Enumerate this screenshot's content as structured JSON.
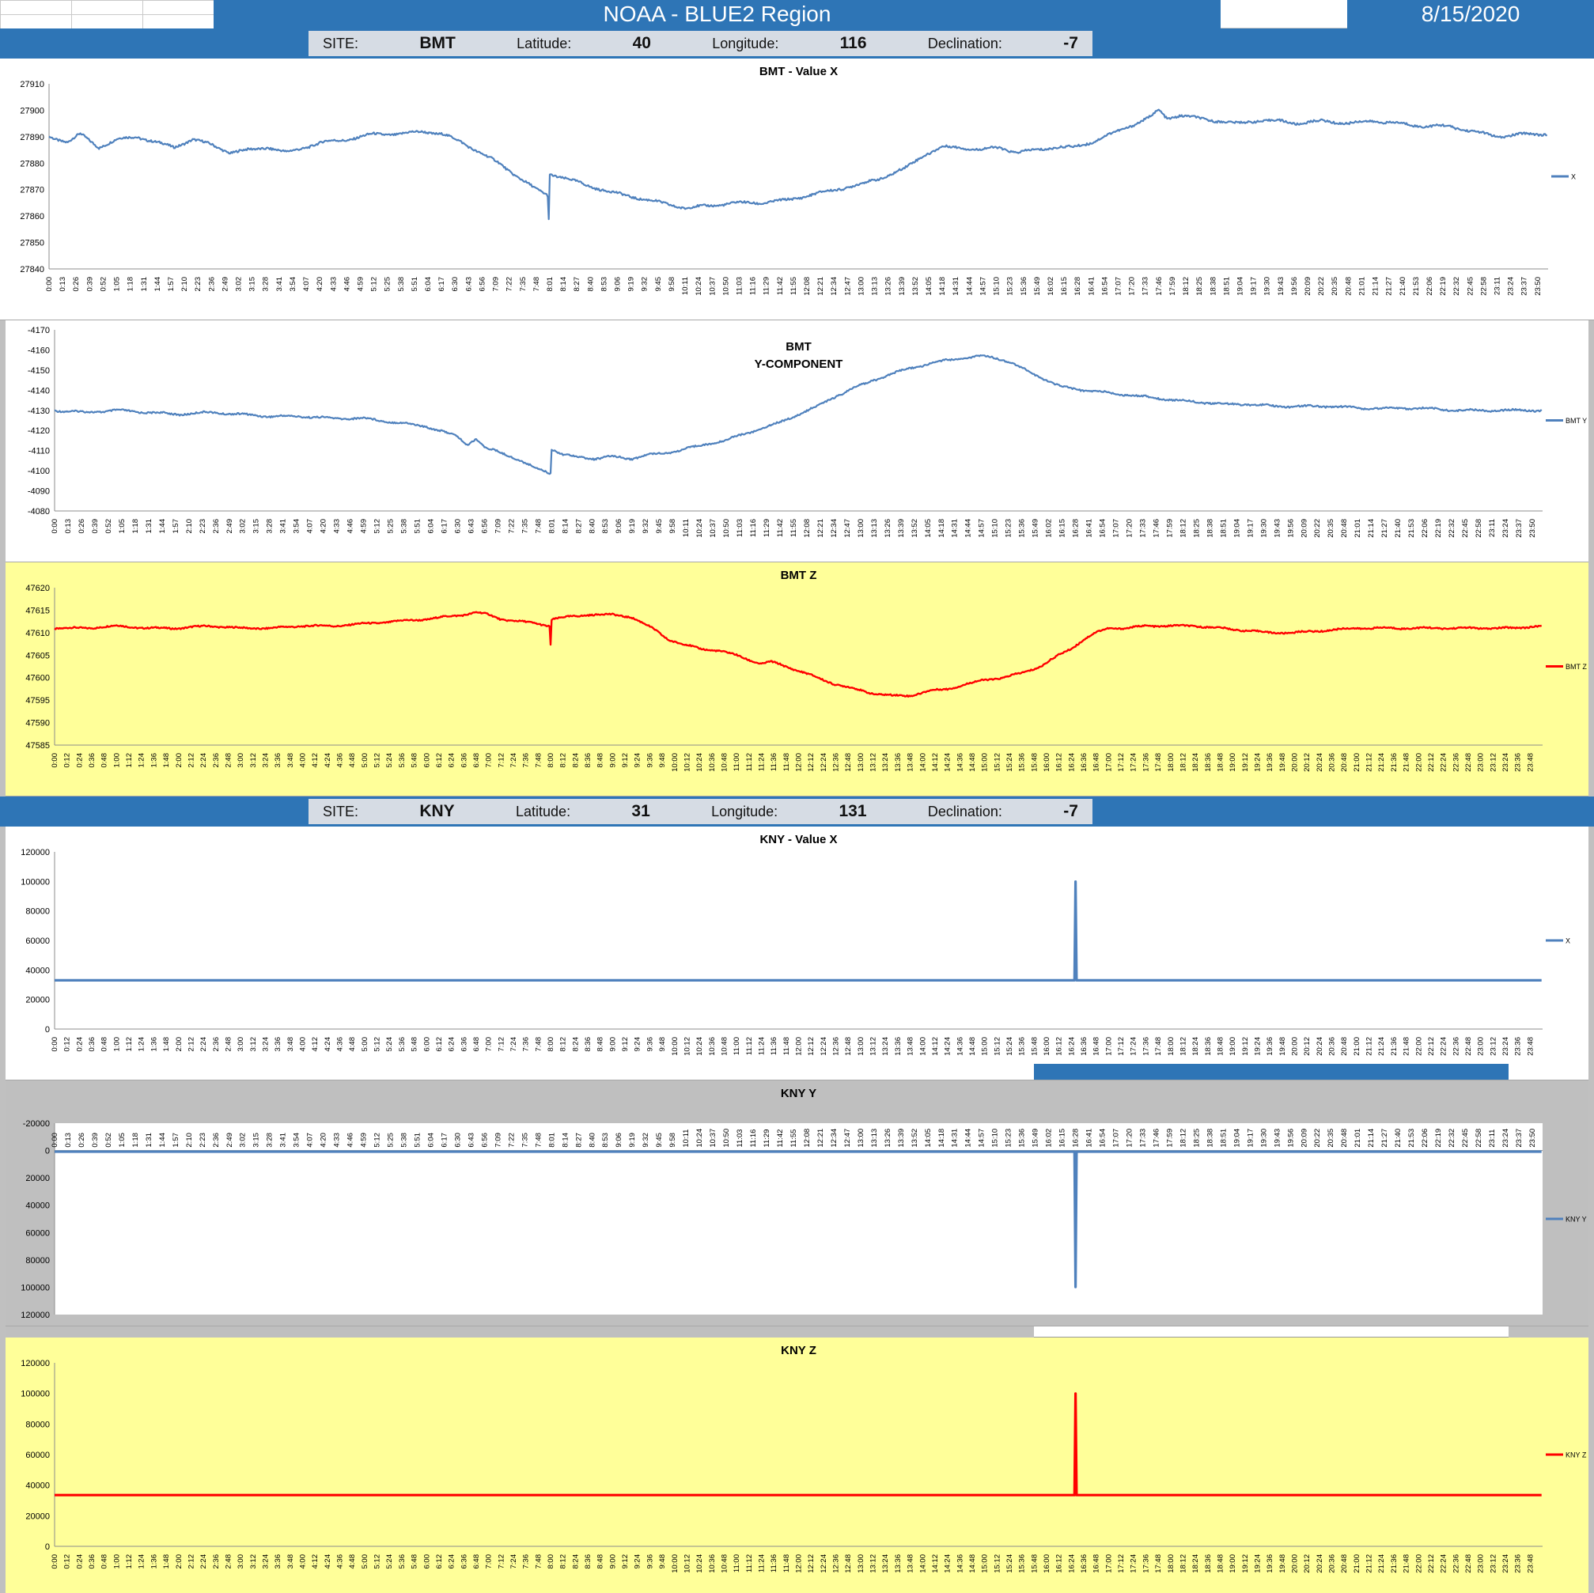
{
  "header": {
    "title": "NOAA - BLUE2 Region",
    "date": "8/15/2020"
  },
  "colors": {
    "banner_blue": "#2E75B6",
    "site_box": "#D6DCE4",
    "panel_grey": "#BFBFBF",
    "panel_yellow": "#FFFF99",
    "series_blue": "#4F81BD",
    "series_red": "#FF0000"
  },
  "site_bars": [
    {
      "site_label": "SITE:",
      "site": "BMT",
      "latitude_label": "Latitude:",
      "latitude": "40",
      "longitude_label": "Longitude:",
      "longitude": "116",
      "declination_label": "Declination:",
      "declination": "-7"
    },
    {
      "site_label": "SITE:",
      "site": "KNY",
      "latitude_label": "Latitude:",
      "latitude": "31",
      "longitude_label": "Longitude:",
      "longitude": "131",
      "declination_label": "Declination:",
      "declination": "-7"
    }
  ],
  "ticks_13min": [
    "0:00",
    "0:13",
    "0:26",
    "0:39",
    "0:52",
    "1:05",
    "1:18",
    "1:31",
    "1:44",
    "1:57",
    "2:10",
    "2:23",
    "2:36",
    "2:49",
    "3:02",
    "3:15",
    "3:28",
    "3:41",
    "3:54",
    "4:07",
    "4:20",
    "4:33",
    "4:46",
    "4:59",
    "5:12",
    "5:25",
    "5:38",
    "5:51",
    "6:04",
    "6:17",
    "6:30",
    "6:43",
    "6:56",
    "7:09",
    "7:22",
    "7:35",
    "7:48",
    "8:01",
    "8:14",
    "8:27",
    "8:40",
    "8:53",
    "9:06",
    "9:19",
    "9:32",
    "9:45",
    "9:58",
    "10:11",
    "10:24",
    "10:37",
    "10:50",
    "11:03",
    "11:16",
    "11:29",
    "11:42",
    "11:55",
    "12:08",
    "12:21",
    "12:34",
    "12:47",
    "13:00",
    "13:13",
    "13:26",
    "13:39",
    "13:52",
    "14:05",
    "14:18",
    "14:31",
    "14:44",
    "14:57",
    "15:10",
    "15:23",
    "15:36",
    "15:49",
    "16:02",
    "16:15",
    "16:28",
    "16:41",
    "16:54",
    "17:07",
    "17:20",
    "17:33",
    "17:46",
    "17:59",
    "18:12",
    "18:25",
    "18:38",
    "18:51",
    "19:04",
    "19:17",
    "19:30",
    "19:43",
    "19:56",
    "20:09",
    "20:22",
    "20:35",
    "20:48",
    "21:01",
    "21:14",
    "21:27",
    "21:40",
    "21:53",
    "22:06",
    "22:19",
    "22:32",
    "22:45",
    "22:58",
    "23:11",
    "23:24",
    "23:37",
    "23:50"
  ],
  "ticks_12min": [
    "0:00",
    "0:12",
    "0:24",
    "0:36",
    "0:48",
    "1:00",
    "1:12",
    "1:24",
    "1:36",
    "1:48",
    "2:00",
    "2:12",
    "2:24",
    "2:36",
    "2:48",
    "3:00",
    "3:12",
    "3:24",
    "3:36",
    "3:48",
    "4:00",
    "4:12",
    "4:24",
    "4:36",
    "4:48",
    "5:00",
    "5:12",
    "5:24",
    "5:36",
    "5:48",
    "6:00",
    "6:12",
    "6:24",
    "6:36",
    "6:48",
    "7:00",
    "7:12",
    "7:24",
    "7:36",
    "7:48",
    "8:00",
    "8:12",
    "8:24",
    "8:36",
    "8:48",
    "9:00",
    "9:12",
    "9:24",
    "9:36",
    "9:48",
    "10:00",
    "10:12",
    "10:24",
    "10:36",
    "10:48",
    "11:00",
    "11:12",
    "11:24",
    "11:36",
    "11:48",
    "12:00",
    "12:12",
    "12:24",
    "12:36",
    "12:48",
    "13:00",
    "13:12",
    "13:24",
    "13:36",
    "13:48",
    "14:00",
    "14:12",
    "14:24",
    "14:36",
    "14:48",
    "15:00",
    "15:12",
    "15:24",
    "15:36",
    "15:48",
    "16:00",
    "16:12",
    "16:24",
    "16:36",
    "16:48",
    "17:00",
    "17:12",
    "17:24",
    "17:36",
    "17:48",
    "18:00",
    "18:12",
    "18:24",
    "18:36",
    "18:48",
    "19:00",
    "19:12",
    "19:24",
    "19:36",
    "19:48",
    "20:00",
    "20:12",
    "20:24",
    "20:36",
    "20:48",
    "21:00",
    "21:12",
    "21:24",
    "21:36",
    "21:48",
    "22:00",
    "22:12",
    "22:24",
    "22:36",
    "22:48",
    "23:00",
    "23:12",
    "23:24",
    "23:36",
    "23:48"
  ],
  "chart_data": [
    {
      "type": "line",
      "title": "BMT - Value X",
      "title_pos": "top",
      "bg": "#FFFFFF",
      "color": "#4F81BD",
      "legend": "X",
      "y_top": 27910,
      "y_bottom": 27840,
      "y_ticks": [
        27910,
        27900,
        27890,
        27880,
        27870,
        27860,
        27850,
        27840
      ],
      "x_labels_ref": "ticks_13min",
      "x_step_min": 13,
      "x_labels_pos": "bottom",
      "points": [
        [
          0,
          27890
        ],
        [
          0.3,
          27888
        ],
        [
          0.5,
          27891
        ],
        [
          0.8,
          27886
        ],
        [
          1.1,
          27889
        ],
        [
          1.4,
          27890
        ],
        [
          1.7,
          27888
        ],
        [
          2,
          27886
        ],
        [
          2.3,
          27889
        ],
        [
          2.6,
          27887
        ],
        [
          2.9,
          27884
        ],
        [
          3.2,
          27885
        ],
        [
          3.5,
          27886
        ],
        [
          3.8,
          27884
        ],
        [
          4.1,
          27886
        ],
        [
          4.4,
          27888
        ],
        [
          4.8,
          27889
        ],
        [
          5.2,
          27891
        ],
        [
          5.6,
          27891
        ],
        [
          6,
          27892
        ],
        [
          6.3,
          27891
        ],
        [
          6.6,
          27888
        ],
        [
          6.9,
          27884
        ],
        [
          7.2,
          27880
        ],
        [
          7.5,
          27875
        ],
        [
          7.8,
          27870
        ],
        [
          7.983,
          27868
        ],
        [
          8,
          27859
        ],
        [
          8.017,
          27876
        ],
        [
          8.3,
          27874
        ],
        [
          8.7,
          27871
        ],
        [
          9,
          27869
        ],
        [
          9.4,
          27867
        ],
        [
          9.8,
          27865
        ],
        [
          10.2,
          27863
        ],
        [
          10.6,
          27864
        ],
        [
          11,
          27865
        ],
        [
          11.4,
          27865
        ],
        [
          11.8,
          27866
        ],
        [
          12.2,
          27868
        ],
        [
          12.6,
          27870
        ],
        [
          13,
          27872
        ],
        [
          13.4,
          27875
        ],
        [
          13.7,
          27878
        ],
        [
          14,
          27883
        ],
        [
          14.3,
          27886
        ],
        [
          14.6,
          27886
        ],
        [
          14.9,
          27885
        ],
        [
          15.2,
          27886
        ],
        [
          15.5,
          27884
        ],
        [
          15.8,
          27885
        ],
        [
          16.1,
          27886
        ],
        [
          16.4,
          27886
        ],
        [
          16.7,
          27888
        ],
        [
          17,
          27891
        ],
        [
          17.3,
          27894
        ],
        [
          17.6,
          27897
        ],
        [
          17.77,
          27900
        ],
        [
          17.9,
          27897
        ],
        [
          18.1,
          27898
        ],
        [
          18.4,
          27897
        ],
        [
          18.7,
          27896
        ],
        [
          19,
          27895
        ],
        [
          19.3,
          27896
        ],
        [
          19.7,
          27896
        ],
        [
          20,
          27895
        ],
        [
          20.4,
          27896
        ],
        [
          20.8,
          27895
        ],
        [
          21.2,
          27896
        ],
        [
          21.6,
          27895
        ],
        [
          22,
          27894
        ],
        [
          22.4,
          27894
        ],
        [
          22.8,
          27892
        ],
        [
          23.2,
          27890
        ],
        [
          23.6,
          27891
        ],
        [
          23.98,
          27891
        ]
      ]
    },
    {
      "type": "line",
      "title": "BMT Y-COMPONENT",
      "title_lines": [
        "BMT",
        "Y-COMPONENT"
      ],
      "title_pos": "inside",
      "bg": "#FFFFFF",
      "color": "#4F81BD",
      "legend": "BMT Y",
      "y_top": -4170,
      "y_bottom": -4080,
      "y_ticks": [
        -4170,
        -4160,
        -4150,
        -4140,
        -4130,
        -4120,
        -4110,
        -4100,
        -4090,
        -4080
      ],
      "x_labels_ref": "ticks_13min",
      "x_step_min": 13,
      "x_labels_pos": "bottom",
      "points": [
        [
          0,
          -4130
        ],
        [
          0.5,
          -4129
        ],
        [
          1,
          -4130
        ],
        [
          1.5,
          -4129
        ],
        [
          2,
          -4128
        ],
        [
          2.5,
          -4129
        ],
        [
          3,
          -4128
        ],
        [
          3.5,
          -4127
        ],
        [
          4,
          -4127
        ],
        [
          4.5,
          -4126
        ],
        [
          5,
          -4126
        ],
        [
          5.5,
          -4124
        ],
        [
          6,
          -4122
        ],
        [
          6.3,
          -4119
        ],
        [
          6.5,
          -4117
        ],
        [
          6.65,
          -4113
        ],
        [
          6.8,
          -4116
        ],
        [
          6.95,
          -4111
        ],
        [
          7.1,
          -4110
        ],
        [
          7.3,
          -4108
        ],
        [
          7.5,
          -4105
        ],
        [
          7.7,
          -4102
        ],
        [
          7.9,
          -4100
        ],
        [
          7.983,
          -4099
        ],
        [
          8,
          -4099
        ],
        [
          8.017,
          -4111
        ],
        [
          8.2,
          -4108
        ],
        [
          8.4,
          -4107
        ],
        [
          8.7,
          -4106
        ],
        [
          9,
          -4107
        ],
        [
          9.3,
          -4106
        ],
        [
          9.6,
          -4108
        ],
        [
          9.9,
          -4109
        ],
        [
          10.2,
          -4111
        ],
        [
          10.5,
          -4113
        ],
        [
          10.8,
          -4115
        ],
        [
          11.1,
          -4118
        ],
        [
          11.4,
          -4121
        ],
        [
          11.7,
          -4124
        ],
        [
          12,
          -4128
        ],
        [
          12.3,
          -4132
        ],
        [
          12.6,
          -4137
        ],
        [
          12.9,
          -4141
        ],
        [
          13.2,
          -4145
        ],
        [
          13.5,
          -4148
        ],
        [
          13.8,
          -4151
        ],
        [
          14.1,
          -4153
        ],
        [
          14.4,
          -4155
        ],
        [
          14.7,
          -4156
        ],
        [
          15,
          -4157
        ],
        [
          15.2,
          -4156
        ],
        [
          15.4,
          -4154
        ],
        [
          15.6,
          -4151
        ],
        [
          15.8,
          -4148
        ],
        [
          16,
          -4145
        ],
        [
          16.2,
          -4142
        ],
        [
          16.4,
          -4141
        ],
        [
          16.6,
          -4140
        ],
        [
          16.9,
          -4139
        ],
        [
          17.2,
          -4138
        ],
        [
          17.5,
          -4137
        ],
        [
          17.8,
          -4136
        ],
        [
          18.1,
          -4135
        ],
        [
          18.5,
          -4134
        ],
        [
          18.9,
          -4133
        ],
        [
          19.3,
          -4133
        ],
        [
          19.7,
          -4132
        ],
        [
          20.1,
          -4132
        ],
        [
          20.6,
          -4132
        ],
        [
          21.1,
          -4131
        ],
        [
          21.6,
          -4131
        ],
        [
          22.1,
          -4131
        ],
        [
          22.6,
          -4130
        ],
        [
          23.1,
          -4130
        ],
        [
          23.98,
          -4130
        ]
      ]
    },
    {
      "type": "line",
      "title": "BMT Z",
      "title_pos": "top",
      "bg": "#FFFF99",
      "color": "#FF0000",
      "legend": "BMT Z",
      "y_top": 47620,
      "y_bottom": 47585,
      "y_ticks": [
        47620,
        47615,
        47610,
        47605,
        47600,
        47595,
        47590,
        47585
      ],
      "x_labels_ref": "ticks_12min",
      "x_step_min": 12,
      "x_labels_pos": "bottom",
      "points": [
        [
          0,
          47611
        ],
        [
          0.5,
          47611
        ],
        [
          1,
          47611.5
        ],
        [
          1.5,
          47611
        ],
        [
          2,
          47611
        ],
        [
          2.5,
          47611.5
        ],
        [
          3,
          47611
        ],
        [
          3.5,
          47611
        ],
        [
          4,
          47611.5
        ],
        [
          4.5,
          47611.5
        ],
        [
          5,
          47612
        ],
        [
          5.5,
          47612.5
        ],
        [
          6,
          47613
        ],
        [
          6.3,
          47613.5
        ],
        [
          6.6,
          47614
        ],
        [
          6.8,
          47614.5
        ],
        [
          7,
          47614
        ],
        [
          7.2,
          47613
        ],
        [
          7.5,
          47612.5
        ],
        [
          7.8,
          47612
        ],
        [
          7.983,
          47611.5
        ],
        [
          8,
          47607.5
        ],
        [
          8.017,
          47613
        ],
        [
          8.3,
          47613.5
        ],
        [
          8.6,
          47614
        ],
        [
          9,
          47614
        ],
        [
          9.3,
          47613.5
        ],
        [
          9.5,
          47612
        ],
        [
          9.7,
          47610.5
        ],
        [
          9.9,
          47608.5
        ],
        [
          10.1,
          47607.5
        ],
        [
          10.4,
          47606.5
        ],
        [
          10.7,
          47606
        ],
        [
          11,
          47605
        ],
        [
          11.2,
          47604
        ],
        [
          11.4,
          47603
        ],
        [
          11.55,
          47603.5
        ],
        [
          11.7,
          47603
        ],
        [
          12,
          47601.5
        ],
        [
          12.3,
          47600
        ],
        [
          12.6,
          47598.5
        ],
        [
          12.9,
          47597.5
        ],
        [
          13.2,
          47596.5
        ],
        [
          13.5,
          47596
        ],
        [
          13.8,
          47596
        ],
        [
          14.1,
          47597
        ],
        [
          14.4,
          47597.5
        ],
        [
          14.7,
          47598.5
        ],
        [
          15,
          47599.5
        ],
        [
          15.3,
          47600
        ],
        [
          15.6,
          47601
        ],
        [
          15.9,
          47602.5
        ],
        [
          16.2,
          47605
        ],
        [
          16.4,
          47606.5
        ],
        [
          16.6,
          47608.5
        ],
        [
          16.8,
          47610
        ],
        [
          17,
          47611
        ],
        [
          17.3,
          47611
        ],
        [
          17.6,
          47611.5
        ],
        [
          18,
          47611.5
        ],
        [
          18.4,
          47611.5
        ],
        [
          18.8,
          47611
        ],
        [
          19.2,
          47610.5
        ],
        [
          19.6,
          47610
        ],
        [
          20,
          47610
        ],
        [
          20.5,
          47610.5
        ],
        [
          21,
          47611
        ],
        [
          21.5,
          47611
        ],
        [
          22,
          47611
        ],
        [
          22.5,
          47611
        ],
        [
          23,
          47611
        ],
        [
          23.5,
          47611
        ],
        [
          23.97,
          47611.5
        ]
      ]
    },
    {
      "type": "line",
      "title": "KNY - Value X",
      "title_pos": "top",
      "bg": "#FFFFFF",
      "color": "#4F81BD",
      "legend": "X",
      "y_top": 120000,
      "y_bottom": 0,
      "y_ticks": [
        120000,
        100000,
        80000,
        60000,
        40000,
        20000,
        0
      ],
      "x_labels_ref": "ticks_12min",
      "x_step_min": 12,
      "x_labels_pos": "bottom",
      "points": [
        [
          0,
          33000
        ],
        [
          16.45,
          33000
        ],
        [
          16.4667,
          100000
        ],
        [
          16.4833,
          33000
        ],
        [
          23.98,
          33000
        ]
      ]
    },
    {
      "type": "line",
      "title": "KNY Y",
      "title_pos": "top",
      "bg": "#BFBFBF",
      "plot_bg": "#FFFFFF",
      "color": "#4F81BD",
      "legend": "KNY Y",
      "y_top": -20000,
      "y_bottom": 120000,
      "axis_cross": 0,
      "y_ticks": [
        -20000,
        0,
        20000,
        40000,
        60000,
        80000,
        100000,
        120000
      ],
      "x_labels_ref": "ticks_13min",
      "x_step_min": 13,
      "x_labels_pos": "top",
      "points": [
        [
          0,
          800
        ],
        [
          16.45,
          800
        ],
        [
          16.4667,
          100000
        ],
        [
          16.4833,
          800
        ],
        [
          23.98,
          800
        ]
      ]
    },
    {
      "type": "line",
      "title": "KNY Z",
      "title_pos": "top",
      "bg": "#FFFF99",
      "color": "#FF0000",
      "legend": "KNY Z",
      "y_top": 120000,
      "y_bottom": 0,
      "y_ticks": [
        120000,
        100000,
        80000,
        60000,
        40000,
        20000,
        0
      ],
      "x_labels_ref": "ticks_12min",
      "x_step_min": 12,
      "x_labels_pos": "bottom",
      "points": [
        [
          0,
          33500
        ],
        [
          16.45,
          33500
        ],
        [
          16.4667,
          100000
        ],
        [
          16.4833,
          33500
        ],
        [
          23.98,
          33500
        ]
      ]
    }
  ]
}
